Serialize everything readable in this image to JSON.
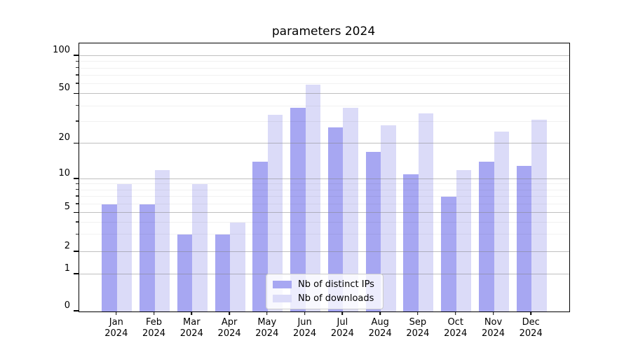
{
  "chart_data": {
    "type": "bar",
    "title": "parameters 2024",
    "categories": [
      "Jan",
      "Feb",
      "Mar",
      "Apr",
      "May",
      "Jun",
      "Jul",
      "Aug",
      "Sep",
      "Oct",
      "Nov",
      "Dec"
    ],
    "x_tick_year": "2024",
    "series": [
      {
        "name": "Nb of distinct IPs",
        "color": "#a7a7f2",
        "values": [
          6,
          6,
          3,
          3,
          14,
          39,
          27,
          17,
          11,
          7,
          14,
          13
        ]
      },
      {
        "name": "Nb of downloads",
        "color": "#dbdbf8",
        "values": [
          9,
          12,
          9,
          4,
          34,
          59,
          39,
          28,
          35,
          12,
          25,
          31
        ]
      }
    ],
    "y_axis": {
      "scale": "log above 1, linear 0-1 (symlog-like)",
      "major_ticks": [
        0,
        1,
        2,
        5,
        10,
        20,
        50,
        100
      ],
      "minor_gridlines": [
        3,
        4,
        6,
        7,
        8,
        9,
        30,
        40,
        60,
        70,
        80,
        90
      ],
      "range_top": 126
    },
    "grid": true,
    "legend_position": "lower center",
    "legend": [
      "Nb of distinct IPs",
      "Nb of downloads"
    ]
  },
  "colors": {
    "bar_dark": "#a7a7f2",
    "bar_light": "#dbdbf8",
    "spine": "#000000",
    "grid_major": "#828282",
    "grid_minor": "#e9e9e9",
    "background": "#ffffff"
  }
}
